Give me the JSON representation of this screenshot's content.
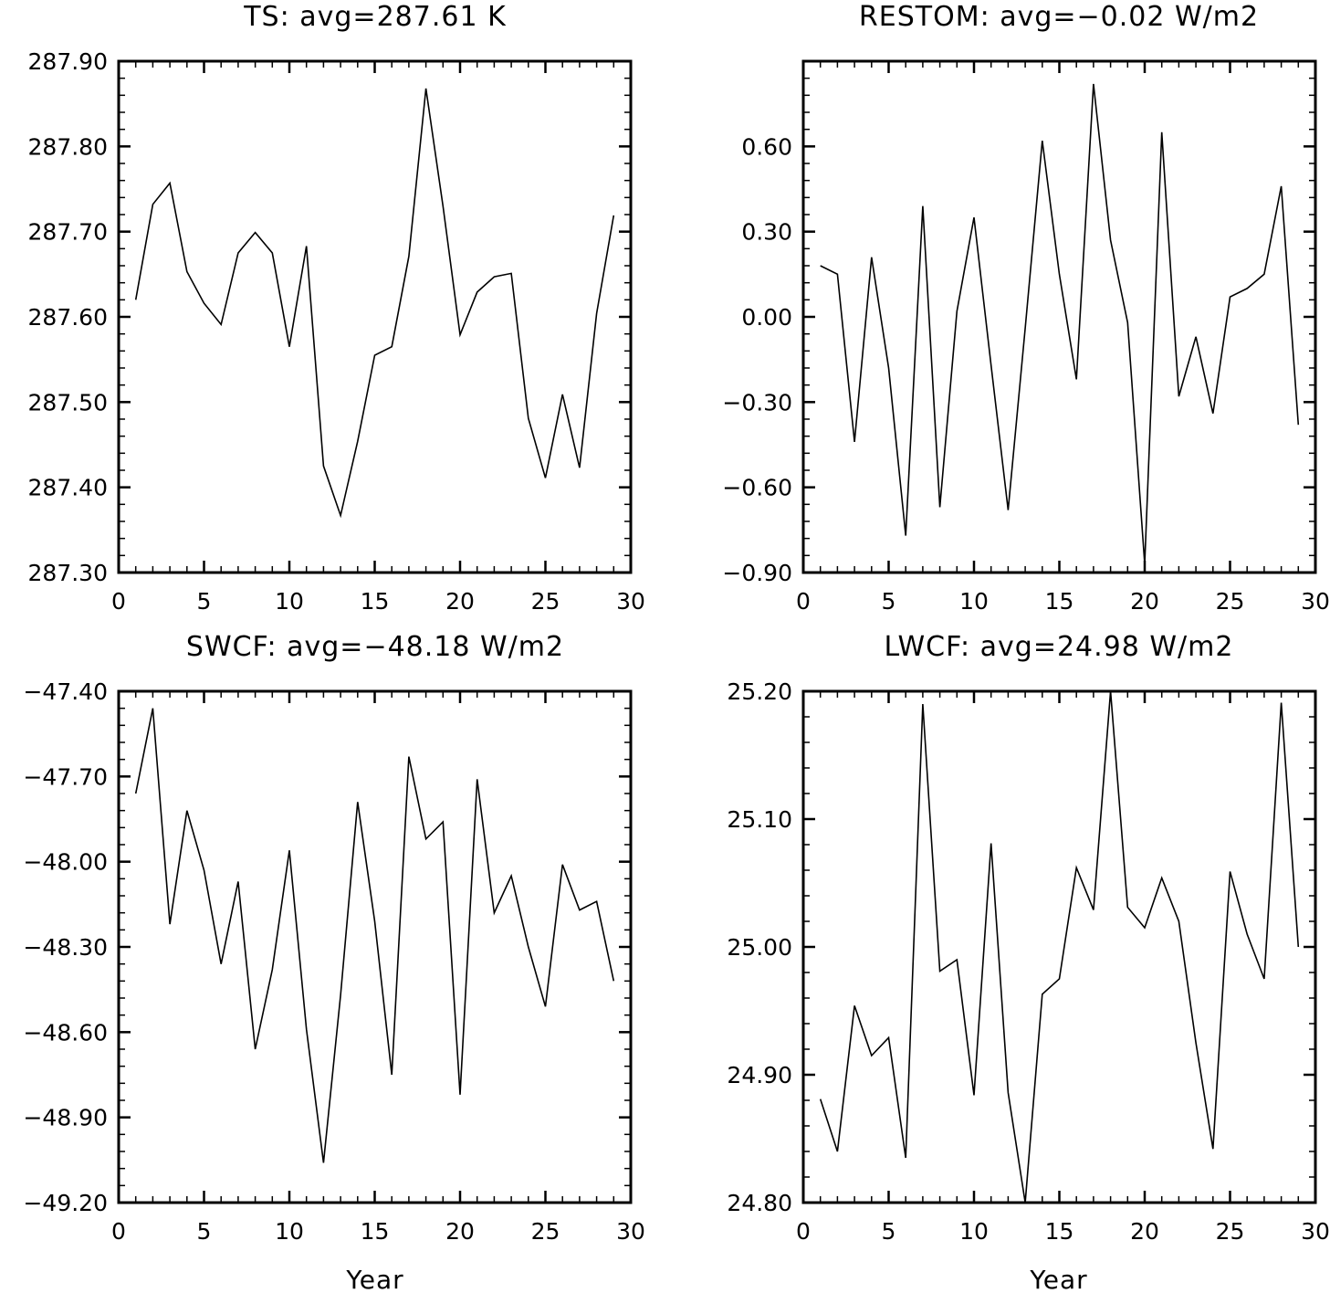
{
  "chart_data": [
    {
      "type": "line",
      "title": "TS: avg=287.61 K",
      "xlabel": "",
      "ylabel": "",
      "xlim": [
        0,
        30
      ],
      "ylim": [
        287.3,
        287.9
      ],
      "x_ticks": [
        0,
        5,
        10,
        15,
        20,
        25,
        30
      ],
      "x_tick_labels": [
        "0",
        "5",
        "10",
        "15",
        "20",
        "25",
        "30"
      ],
      "y_ticks": [
        287.3,
        287.4,
        287.5,
        287.6,
        287.7,
        287.8,
        287.9
      ],
      "y_tick_labels": [
        "287.30",
        "287.40",
        "287.50",
        "287.60",
        "287.70",
        "287.80",
        "287.90"
      ],
      "grid": false,
      "x": [
        1,
        2,
        3,
        4,
        5,
        6,
        7,
        8,
        9,
        10,
        11,
        12,
        13,
        14,
        15,
        16,
        17,
        18,
        19,
        20,
        21,
        22,
        23,
        24,
        25,
        26,
        27,
        28,
        29
      ],
      "series": [
        {
          "values": [
            287.62,
            287.732,
            287.757,
            287.653,
            287.616,
            287.591,
            287.675,
            287.699,
            287.675,
            287.565,
            287.683,
            287.425,
            287.367,
            287.454,
            287.555,
            287.565,
            287.671,
            287.868,
            287.73,
            287.579,
            287.629,
            287.647,
            287.651,
            287.481,
            287.411,
            287.509,
            287.423,
            287.604,
            287.719
          ]
        }
      ]
    },
    {
      "type": "line",
      "title": "RESTOM: avg=−0.02 W/m2",
      "xlabel": "",
      "ylabel": "",
      "xlim": [
        0,
        30
      ],
      "ylim": [
        -0.9,
        0.9
      ],
      "x_ticks": [
        0,
        5,
        10,
        15,
        20,
        25,
        30
      ],
      "x_tick_labels": [
        "0",
        "5",
        "10",
        "15",
        "20",
        "25",
        "30"
      ],
      "y_ticks": [
        -0.9,
        -0.6,
        -0.3,
        0.0,
        0.3,
        0.6
      ],
      "y_tick_labels": [
        "−0.90",
        "−0.60",
        "−0.30",
        "0.00",
        "0.30",
        "0.60"
      ],
      "grid": false,
      "x": [
        1,
        2,
        3,
        4,
        5,
        6,
        7,
        8,
        9,
        10,
        11,
        12,
        13,
        14,
        15,
        16,
        17,
        18,
        19,
        20,
        21,
        22,
        23,
        24,
        25,
        26,
        27,
        28,
        29
      ],
      "series": [
        {
          "values": [
            0.18,
            0.15,
            -0.44,
            0.21,
            -0.18,
            -0.77,
            0.39,
            -0.67,
            0.02,
            0.35,
            -0.17,
            -0.68,
            -0.04,
            0.62,
            0.15,
            -0.22,
            0.82,
            0.27,
            -0.02,
            -0.87,
            0.65,
            -0.28,
            -0.07,
            -0.34,
            0.07,
            0.1,
            0.15,
            0.46,
            -0.38
          ]
        }
      ]
    },
    {
      "type": "line",
      "title": "SWCF: avg=−48.18 W/m2",
      "xlabel": "Year",
      "ylabel": "",
      "xlim": [
        0,
        30
      ],
      "ylim": [
        -49.2,
        -47.4
      ],
      "x_ticks": [
        0,
        5,
        10,
        15,
        20,
        25,
        30
      ],
      "x_tick_labels": [
        "0",
        "5",
        "10",
        "15",
        "20",
        "25",
        "30"
      ],
      "y_ticks": [
        -49.2,
        -48.9,
        -48.6,
        -48.3,
        -48.0,
        -47.7,
        -47.4
      ],
      "y_tick_labels": [
        "−49.20",
        "−48.90",
        "−48.60",
        "−48.30",
        "−48.00",
        "−47.70",
        "−47.40"
      ],
      "grid": false,
      "x": [
        1,
        2,
        3,
        4,
        5,
        6,
        7,
        8,
        9,
        10,
        11,
        12,
        13,
        14,
        15,
        16,
        17,
        18,
        19,
        20,
        21,
        22,
        23,
        24,
        25,
        26,
        27,
        28,
        29
      ],
      "series": [
        {
          "values": [
            -47.76,
            -47.46,
            -48.22,
            -47.82,
            -48.03,
            -48.36,
            -48.07,
            -48.66,
            -48.38,
            -47.96,
            -48.59,
            -49.06,
            -48.47,
            -47.79,
            -48.21,
            -48.75,
            -47.63,
            -47.92,
            -47.86,
            -48.82,
            -47.71,
            -48.18,
            -48.05,
            -48.3,
            -48.51,
            -48.01,
            -48.17,
            -48.14,
            -48.42
          ]
        }
      ]
    },
    {
      "type": "line",
      "title": "LWCF: avg=24.98 W/m2",
      "xlabel": "Year",
      "ylabel": "",
      "xlim": [
        0,
        30
      ],
      "ylim": [
        24.8,
        25.2
      ],
      "x_ticks": [
        0,
        5,
        10,
        15,
        20,
        25,
        30
      ],
      "x_tick_labels": [
        "0",
        "5",
        "10",
        "15",
        "20",
        "25",
        "30"
      ],
      "y_ticks": [
        24.8,
        24.9,
        25.0,
        25.1,
        25.2
      ],
      "y_tick_labels": [
        "24.80",
        "24.90",
        "25.00",
        "25.10",
        "25.20"
      ],
      "grid": false,
      "x": [
        1,
        2,
        3,
        4,
        5,
        6,
        7,
        8,
        9,
        10,
        11,
        12,
        13,
        14,
        15,
        16,
        17,
        18,
        19,
        20,
        21,
        22,
        23,
        24,
        25,
        26,
        27,
        28,
        29
      ],
      "series": [
        {
          "values": [
            24.881,
            24.84,
            24.954,
            24.915,
            24.929,
            24.835,
            25.19,
            24.981,
            24.99,
            24.884,
            25.081,
            24.886,
            24.8,
            24.963,
            24.975,
            25.062,
            25.029,
            25.2,
            25.031,
            25.015,
            25.054,
            25.02,
            24.925,
            24.842,
            25.059,
            25.01,
            24.975,
            25.191,
            25.0
          ]
        }
      ]
    }
  ]
}
